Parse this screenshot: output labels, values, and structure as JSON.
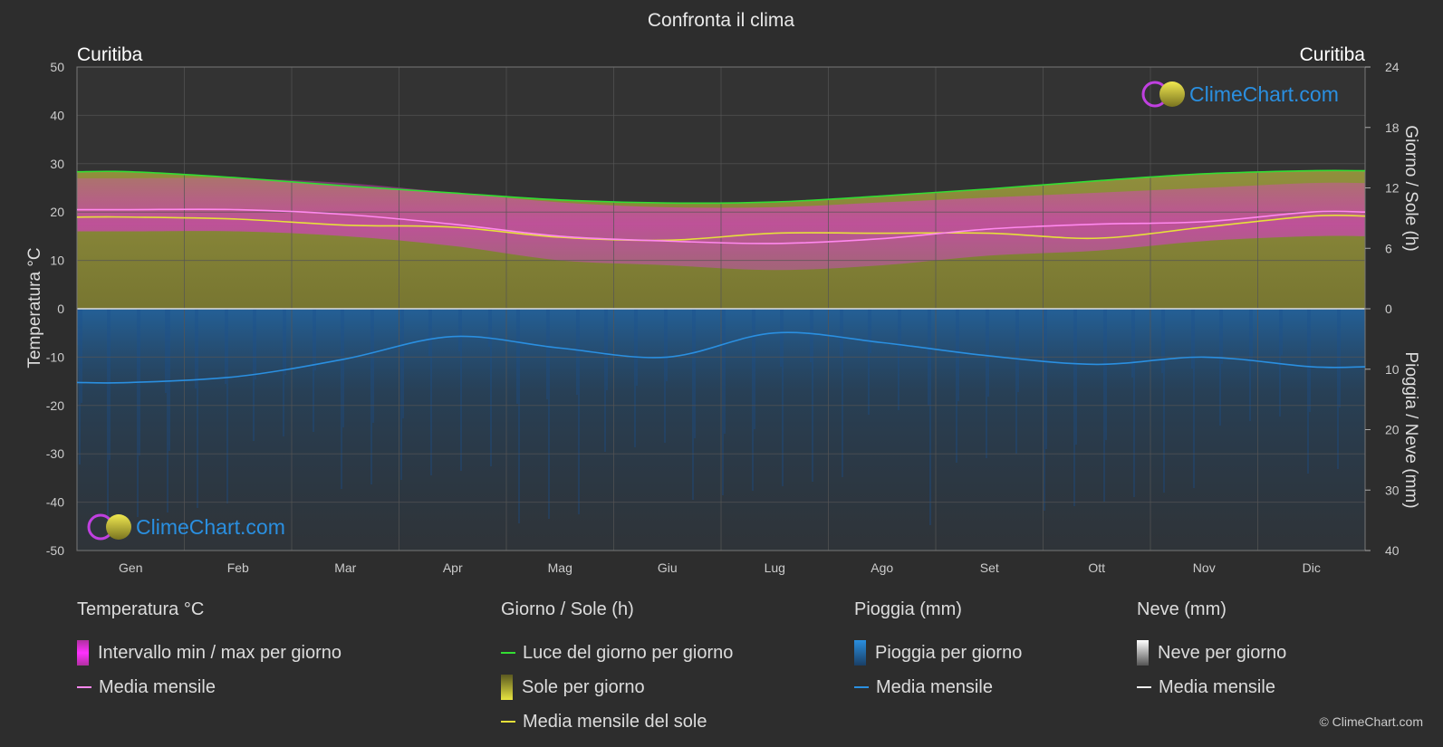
{
  "page_title": "Confronta il clima",
  "copyright": "© ClimeChart.com",
  "logo_text": "ClimeChart.com",
  "colors": {
    "background": "#2d2d2d",
    "grid": "#555555",
    "daylight": "#33dd33",
    "sunshine_fill": "#a8a63a",
    "sun_mean": "#e6e03a",
    "temp_range": "#e040c8",
    "temp_mean": "#ff88ee",
    "rain_fill": "#1e6ab0",
    "rain_mean": "#2a8fe0",
    "logo_blue": "#2a8fe0"
  },
  "chart_data": {
    "type": "line",
    "title": "Confronta il clima",
    "location_left": "Curitiba",
    "location_right": "Curitiba",
    "categories": [
      "Gen",
      "Feb",
      "Mar",
      "Apr",
      "Mag",
      "Giu",
      "Lug",
      "Ago",
      "Set",
      "Ott",
      "Nov",
      "Dic"
    ],
    "left_axis": {
      "label": "Temperatura °C",
      "min": -50,
      "max": 50,
      "ticks": [
        50,
        40,
        30,
        20,
        10,
        0,
        -10,
        -20,
        -30,
        -40,
        -50
      ]
    },
    "right_axis_top": {
      "label": "Giorno / Sole (h)",
      "min": 0,
      "max": 24,
      "ticks": [
        24,
        18,
        12,
        6,
        0
      ]
    },
    "right_axis_bottom": {
      "label": "Pioggia / Neve (mm)",
      "min": 0,
      "max": 40,
      "ticks": [
        0,
        10,
        20,
        30,
        40
      ]
    },
    "series": [
      {
        "name": "Luce del giorno per giorno",
        "axis": "hours",
        "values": [
          13.6,
          13.0,
          12.2,
          11.5,
          10.8,
          10.5,
          10.6,
          11.2,
          11.9,
          12.7,
          13.4,
          13.7
        ]
      },
      {
        "name": "Media mensile del sole",
        "axis": "hours",
        "values": [
          9.1,
          8.9,
          8.3,
          8.1,
          7.1,
          6.8,
          7.5,
          7.5,
          7.5,
          7.0,
          8.1,
          9.2
        ]
      },
      {
        "name": "Media mensile temperatura",
        "axis": "temperature",
        "values": [
          20.5,
          20.5,
          19.5,
          17.5,
          15.0,
          14.0,
          13.5,
          14.5,
          16.5,
          17.5,
          18.0,
          20.0
        ]
      },
      {
        "name": "Intervallo max per giorno",
        "axis": "temperature",
        "values": [
          27,
          27,
          26,
          24,
          22,
          21,
          21,
          22,
          23,
          24,
          25,
          26
        ]
      },
      {
        "name": "Intervallo min per giorno",
        "axis": "temperature",
        "values": [
          16,
          16,
          15,
          13,
          10,
          9,
          8,
          9,
          11,
          12,
          14,
          15
        ]
      },
      {
        "name": "Pioggia media mensile",
        "axis": "rain",
        "values": [
          12.2,
          11.2,
          8.3,
          4.6,
          6.5,
          8.0,
          4.0,
          5.6,
          7.8,
          9.2,
          8.0,
          9.6
        ]
      }
    ]
  },
  "legend": {
    "temperature": {
      "title": "Temperatura °C",
      "range": "Intervallo min / max per giorno",
      "mean": "Media mensile"
    },
    "sun": {
      "title": "Giorno / Sole (h)",
      "daylight": "Luce del giorno per giorno",
      "sunshine": "Sole per giorno",
      "mean": "Media mensile del sole"
    },
    "rain": {
      "title": "Pioggia (mm)",
      "daily": "Pioggia per giorno",
      "mean": "Media mensile"
    },
    "snow": {
      "title": "Neve (mm)",
      "daily": "Neve per giorno",
      "mean": "Media mensile"
    }
  }
}
